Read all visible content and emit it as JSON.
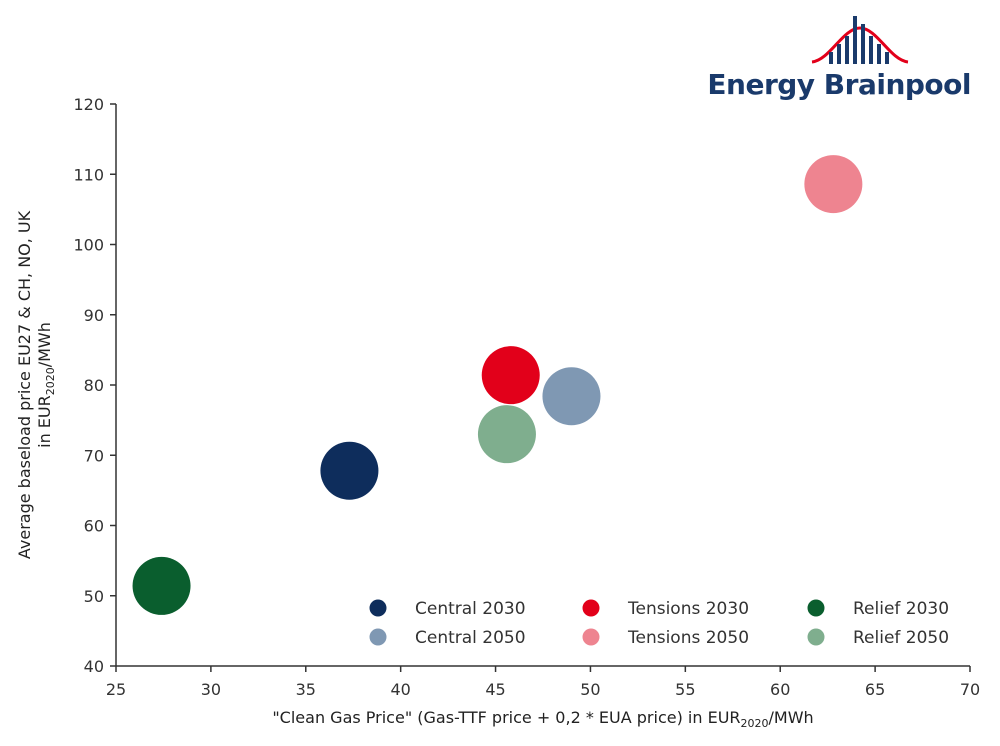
{
  "logo": {
    "text": "Energy Brainpool"
  },
  "chart_data": {
    "type": "scatter",
    "title": "",
    "xlabel_parts": [
      "\"Clean Gas Price\" (Gas-TTF price + 0,2 * EUA price) in EUR",
      "2020",
      "/MWh"
    ],
    "ylabel_line1": "Average baseload price EU27 & CH, NO, UK",
    "ylabel_line2_parts": [
      "in EUR",
      "2020",
      "/MWh"
    ],
    "xlim": [
      25,
      70
    ],
    "ylim": [
      40,
      120
    ],
    "xticks": [
      25,
      30,
      35,
      40,
      45,
      50,
      55,
      60,
      65,
      70
    ],
    "yticks": [
      40,
      50,
      60,
      70,
      80,
      90,
      100,
      110,
      120
    ],
    "grid": false,
    "legend_position": "bottom-right",
    "series": [
      {
        "name": "Central 2030",
        "x": 37.3,
        "y": 67.8,
        "color": "#0e2d5c"
      },
      {
        "name": "Tensions 2030",
        "x": 45.8,
        "y": 81.4,
        "color": "#e2001a"
      },
      {
        "name": "Relief 2030",
        "x": 27.4,
        "y": 51.4,
        "color": "#0a5e2e"
      },
      {
        "name": "Central 2050",
        "x": 49.0,
        "y": 78.4,
        "color": "#7f98b3"
      },
      {
        "name": "Tensions 2050",
        "x": 62.8,
        "y": 108.6,
        "color": "#ee8490"
      },
      {
        "name": "Relief 2050",
        "x": 45.6,
        "y": 73.0,
        "color": "#7fae8e"
      }
    ]
  }
}
